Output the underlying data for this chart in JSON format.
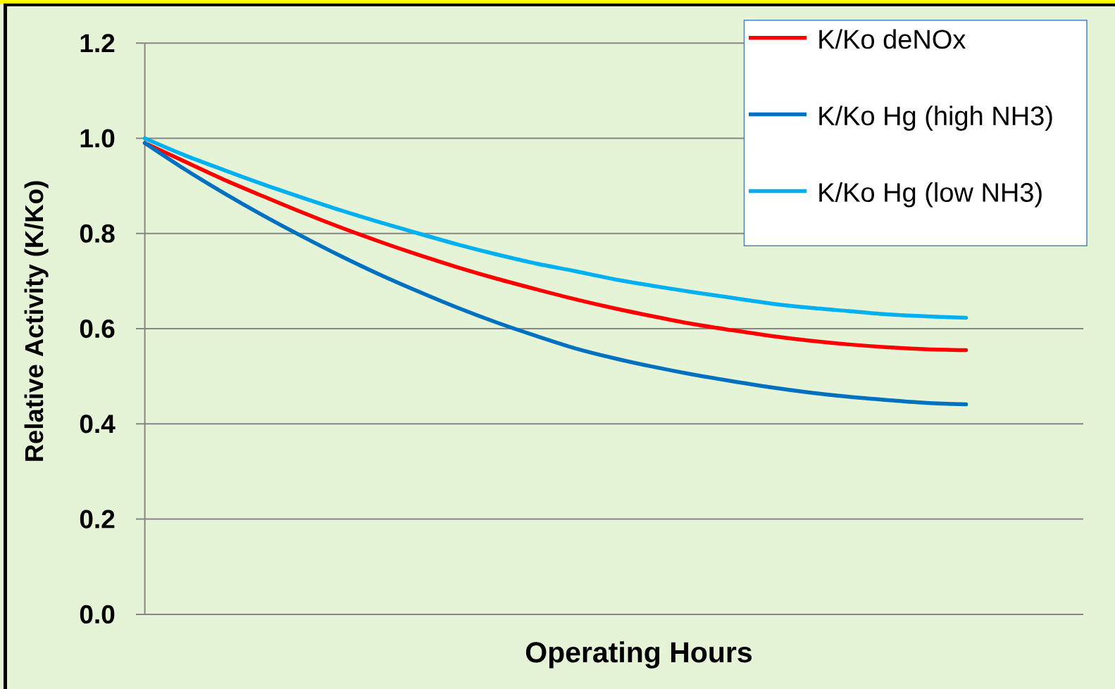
{
  "chart_data": {
    "type": "line",
    "xlabel": "Operating Hours",
    "ylabel": "Relative Activity (K/Ko)",
    "categories": [
      null,
      null,
      null,
      null,
      null,
      null,
      null,
      null,
      null,
      null,
      null,
      null,
      null,
      null,
      null,
      null,
      null,
      null,
      null,
      null,
      null,
      null,
      null,
      null,
      null
    ],
    "series": [
      {
        "name": "K/Ko deNOx",
        "color": "#ff0000",
        "values": [
          0.99,
          0.952,
          0.914,
          0.879,
          0.845,
          0.813,
          0.783,
          0.755,
          0.729,
          0.705,
          0.683,
          0.662,
          0.643,
          0.626,
          0.61,
          0.597,
          0.585,
          0.575,
          0.567,
          0.561,
          0.557,
          0.555,
          null,
          null,
          null
        ]
      },
      {
        "name": "K/Ko Hg (high NH3)",
        "color": "#0070c0",
        "values": [
          0.99,
          0.936,
          0.886,
          0.839,
          0.795,
          0.753,
          0.714,
          0.678,
          0.644,
          0.613,
          0.585,
          0.559,
          0.538,
          0.52,
          0.504,
          0.49,
          0.477,
          0.466,
          0.457,
          0.45,
          0.444,
          0.441,
          null,
          null,
          null
        ]
      },
      {
        "name": "K/Ko Hg (low NH3)",
        "color": "#00b0f0",
        "values": [
          1.0,
          0.965,
          0.934,
          0.904,
          0.876,
          0.849,
          0.824,
          0.8,
          0.777,
          0.756,
          0.737,
          0.721,
          0.704,
          0.69,
          0.677,
          0.665,
          0.653,
          0.644,
          0.637,
          0.63,
          0.626,
          0.623,
          null,
          null,
          null
        ]
      }
    ],
    "ylim": [
      0,
      1.2
    ],
    "yticks": [
      {
        "value": 0,
        "label": "0.0"
      },
      0.2,
      0.4,
      0.6,
      0.8,
      {
        "value": 1,
        "label": "1.0"
      },
      1.2
    ],
    "grid": "y",
    "legend": "top right",
    "marker": "none",
    "line_style": "solid"
  }
}
